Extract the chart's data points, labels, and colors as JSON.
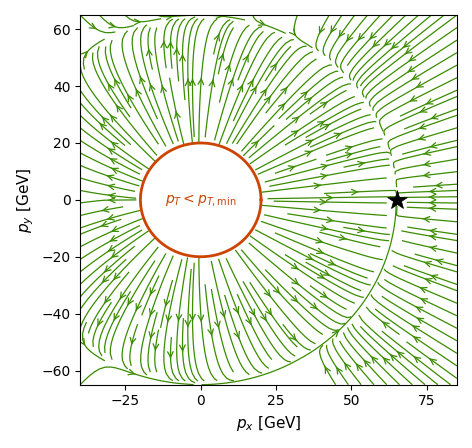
{
  "target_x": 65.0,
  "target_y": 0.0,
  "pT_min": 20.0,
  "xlim": [
    -40,
    85
  ],
  "ylim": [
    -65,
    65
  ],
  "xlabel": "$p_x$ [GeV]",
  "ylabel": "$p_y$ [GeV]",
  "xticks": [
    -25,
    0,
    25,
    50,
    75
  ],
  "yticks": [
    -60,
    -40,
    -20,
    0,
    20,
    40,
    60
  ],
  "stream_color": "#3a8c00",
  "circle_color": "#cc4400",
  "circle_label": "$p_T < p_{T,\\mathrm{min}}$",
  "star_color": "black",
  "background_color": "white",
  "figsize": [
    4.72,
    4.48
  ],
  "dpi": 100,
  "stream_density": 2.0,
  "stream_linewidth": 0.9,
  "stream_arrowsize": 1.0
}
